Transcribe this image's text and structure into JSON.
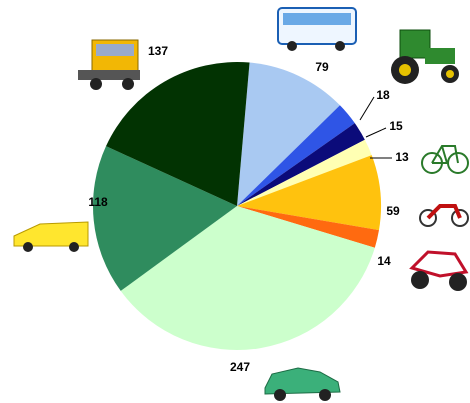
{
  "chart_data": {
    "type": "pie",
    "values": [
      79,
      18,
      15,
      13,
      59,
      14,
      247,
      118,
      137
    ],
    "colors": [
      "#a9c9f2",
      "#2f55e6",
      "#0b0b7a",
      "#ffffb3",
      "#ffc20e",
      "#ff6a10",
      "#ccffcc",
      "#2f8c5e",
      "#023302"
    ]
  }
}
